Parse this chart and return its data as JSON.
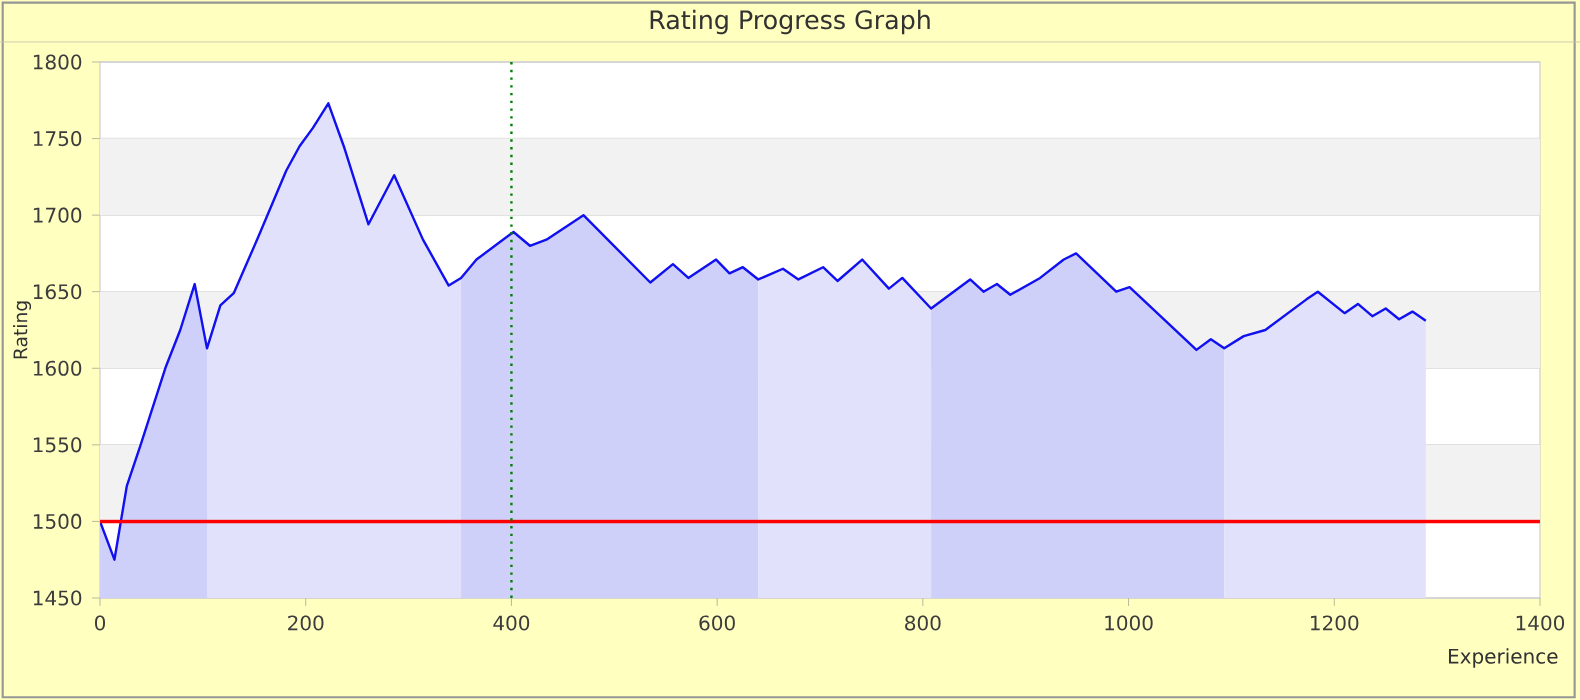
{
  "chart_data": {
    "type": "line",
    "title": "Rating Progress Graph",
    "xlabel": "Experience",
    "ylabel": "Rating",
    "xlim": [
      0,
      1400
    ],
    "xticks": [
      0,
      200,
      400,
      600,
      800,
      1000,
      1200,
      1400
    ],
    "ylim": [
      1450,
      1800
    ],
    "yticks": [
      1450,
      1500,
      1550,
      1600,
      1650,
      1700,
      1750,
      1800
    ],
    "grid": "y",
    "series": [
      {
        "type": "area",
        "color": "#cfd0fa",
        "x": [
          0,
          14,
          26,
          39,
          64,
          78,
          92,
          104
        ],
        "values": [
          1500,
          1475,
          1523,
          1549,
          1601,
          1625,
          1655,
          1613
        ]
      },
      {
        "type": "area",
        "color": "#e1e1fb",
        "x": [
          104,
          117,
          130,
          154,
          181,
          194,
          207,
          222,
          237,
          261,
          286,
          314,
          339,
          351
        ],
        "values": [
          1613,
          1641,
          1649,
          1686,
          1729,
          1745,
          1757,
          1773,
          1745,
          1694,
          1726,
          1684,
          1654,
          1659
        ]
      },
      {
        "type": "area",
        "color": "#cfd0fa",
        "x": [
          351,
          366,
          402,
          418,
          434,
          470,
          535,
          557,
          572,
          599,
          612,
          625,
          640
        ],
        "values": [
          1659,
          1671,
          1689,
          1680,
          1684,
          1700,
          1656,
          1668,
          1659,
          1671,
          1662,
          1666,
          1658
        ]
      },
      {
        "type": "area",
        "color": "#e1e1fb",
        "x": [
          640,
          664,
          679,
          703,
          717,
          741,
          767,
          780,
          808
        ],
        "values": [
          1658,
          1665,
          1658,
          1666,
          1657,
          1671,
          1652,
          1659,
          1639
        ]
      },
      {
        "type": "area",
        "color": "#cfd0fa",
        "x": [
          808,
          846,
          859,
          872,
          885,
          914,
          937,
          949,
          988,
          1001,
          1066,
          1080,
          1093
        ],
        "values": [
          1639,
          1658,
          1650,
          1655,
          1648,
          1659,
          1671,
          1675,
          1650,
          1653,
          1612,
          1619,
          1613
        ]
      },
      {
        "type": "area",
        "color": "#e1e1fb",
        "x": [
          1093,
          1112,
          1133,
          1173,
          1184,
          1210,
          1223,
          1237,
          1250,
          1263,
          1276,
          1289
        ],
        "values": [
          1613,
          1621,
          1625,
          1645,
          1650,
          1636,
          1642,
          1634,
          1639,
          1632,
          1637,
          1631
        ]
      },
      {
        "color": "#1010f0",
        "x": [
          0,
          14,
          26,
          39,
          64,
          78,
          92,
          104,
          117,
          130,
          154,
          181,
          194,
          207,
          222,
          237,
          261,
          286,
          314,
          339,
          351,
          366,
          402,
          418,
          434,
          470,
          535,
          557,
          572,
          599,
          612,
          625,
          640,
          664,
          679,
          703,
          717,
          741,
          767,
          780,
          808,
          846,
          859,
          872,
          885,
          914,
          937,
          949,
          988,
          1001,
          1066,
          1080,
          1093,
          1112,
          1133,
          1173,
          1184,
          1210,
          1223,
          1237,
          1250,
          1263,
          1276,
          1289
        ],
        "values": [
          1500,
          1475,
          1523,
          1549,
          1601,
          1625,
          1655,
          1613,
          1641,
          1649,
          1686,
          1729,
          1745,
          1757,
          1773,
          1745,
          1694,
          1726,
          1684,
          1654,
          1659,
          1671,
          1689,
          1680,
          1684,
          1700,
          1656,
          1668,
          1659,
          1671,
          1662,
          1666,
          1658,
          1665,
          1658,
          1666,
          1657,
          1671,
          1652,
          1659,
          1639,
          1658,
          1650,
          1655,
          1648,
          1659,
          1671,
          1675,
          1650,
          1653,
          1612,
          1619,
          1613,
          1621,
          1625,
          1645,
          1650,
          1636,
          1642,
          1634,
          1639,
          1632,
          1637,
          1631
        ]
      }
    ],
    "ref_lines": [
      {
        "axis": "y",
        "value": 1500,
        "color": "#ff0000",
        "line_style": "solid"
      },
      {
        "axis": "x",
        "value": 400,
        "color": "#008000",
        "line_style": "dotted"
      }
    ]
  }
}
